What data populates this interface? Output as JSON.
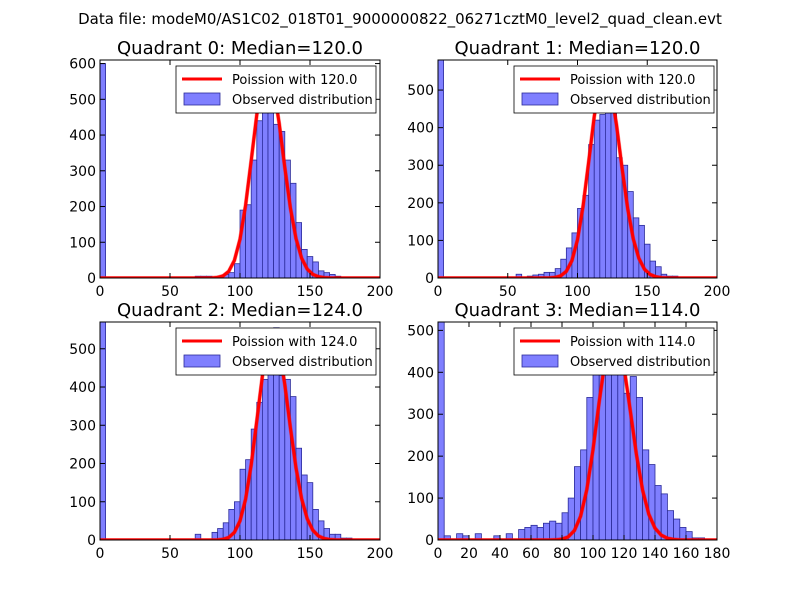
{
  "figure": {
    "suptitle": "Data file: modeM0/AS1C02_018T01_9000000822_06271cztM0_level2_quad_clean.evt"
  },
  "colors": {
    "bar_fill": "#7f7fff",
    "bar_edge": "#2b2b99",
    "poisson_line": "#ff0000",
    "text": "#000000"
  },
  "chart_data": [
    {
      "type": "bar",
      "title": "Quadrant 0: Median=120.0",
      "xlim": [
        0,
        200
      ],
      "ylim": [
        0,
        610
      ],
      "xticks": [
        0,
        50,
        100,
        150,
        200
      ],
      "yticks": [
        0,
        100,
        200,
        300,
        400,
        500,
        600
      ],
      "bin_width": 4,
      "bins": [
        [
          0,
          600
        ],
        [
          68,
          5
        ],
        [
          72,
          5
        ],
        [
          76,
          5
        ],
        [
          80,
          2
        ],
        [
          84,
          5
        ],
        [
          88,
          10
        ],
        [
          92,
          15
        ],
        [
          96,
          40
        ],
        [
          100,
          190
        ],
        [
          104,
          205
        ],
        [
          108,
          330
        ],
        [
          112,
          440
        ],
        [
          116,
          470
        ],
        [
          120,
          560
        ],
        [
          124,
          430
        ],
        [
          128,
          410
        ],
        [
          132,
          330
        ],
        [
          136,
          265
        ],
        [
          140,
          155
        ],
        [
          144,
          80
        ],
        [
          148,
          60
        ],
        [
          152,
          45
        ],
        [
          156,
          20
        ],
        [
          160,
          15
        ],
        [
          164,
          10
        ],
        [
          168,
          5
        ]
      ],
      "poisson_mean": 120.0,
      "poisson_peak": 580,
      "legend": [
        "Poission with 120.0",
        "Observed distribution"
      ]
    },
    {
      "type": "bar",
      "title": "Quadrant 1: Median=120.0",
      "xlim": [
        0,
        200
      ],
      "ylim": [
        0,
        580
      ],
      "xticks": [
        0,
        50,
        100,
        150,
        200
      ],
      "yticks": [
        0,
        100,
        200,
        300,
        400,
        500
      ],
      "bin_width": 4,
      "bins": [
        [
          0,
          580
        ],
        [
          56,
          10
        ],
        [
          64,
          5
        ],
        [
          68,
          8
        ],
        [
          72,
          10
        ],
        [
          76,
          15
        ],
        [
          80,
          15
        ],
        [
          84,
          25
        ],
        [
          88,
          50
        ],
        [
          92,
          80
        ],
        [
          96,
          120
        ],
        [
          100,
          185
        ],
        [
          104,
          220
        ],
        [
          108,
          355
        ],
        [
          112,
          420
        ],
        [
          116,
          435
        ],
        [
          120,
          530
        ],
        [
          124,
          480
        ],
        [
          128,
          320
        ],
        [
          132,
          300
        ],
        [
          136,
          230
        ],
        [
          140,
          160
        ],
        [
          144,
          140
        ],
        [
          148,
          90
        ],
        [
          152,
          45
        ],
        [
          156,
          30
        ],
        [
          160,
          10
        ],
        [
          164,
          5
        ],
        [
          168,
          5
        ]
      ],
      "poisson_mean": 120.0,
      "poisson_peak": 545,
      "legend": [
        "Poission with 120.0",
        "Observed distribution"
      ]
    },
    {
      "type": "bar",
      "title": "Quadrant 2: Median=124.0",
      "xlim": [
        0,
        200
      ],
      "ylim": [
        0,
        570
      ],
      "xticks": [
        0,
        50,
        100,
        150,
        200
      ],
      "yticks": [
        0,
        100,
        200,
        300,
        400,
        500
      ],
      "bin_width": 4,
      "bins": [
        [
          0,
          570
        ],
        [
          68,
          15
        ],
        [
          80,
          20
        ],
        [
          84,
          30
        ],
        [
          88,
          45
        ],
        [
          92,
          80
        ],
        [
          96,
          100
        ],
        [
          100,
          185
        ],
        [
          104,
          210
        ],
        [
          108,
          290
        ],
        [
          112,
          360
        ],
        [
          116,
          420
        ],
        [
          120,
          470
        ],
        [
          124,
          555
        ],
        [
          128,
          430
        ],
        [
          132,
          420
        ],
        [
          136,
          375
        ],
        [
          140,
          240
        ],
        [
          144,
          170
        ],
        [
          148,
          150
        ],
        [
          152,
          80
        ],
        [
          156,
          50
        ],
        [
          160,
          30
        ],
        [
          164,
          15
        ],
        [
          168,
          15
        ],
        [
          172,
          5
        ],
        [
          176,
          5
        ]
      ],
      "poisson_mean": 124.0,
      "poisson_peak": 540,
      "legend": [
        "Poission with 124.0",
        "Observed distribution"
      ]
    },
    {
      "type": "bar",
      "title": "Quadrant 3: Median=114.0",
      "xlim": [
        0,
        180
      ],
      "ylim": [
        0,
        520
      ],
      "xticks": [
        0,
        20,
        40,
        60,
        80,
        100,
        120,
        140,
        160,
        180
      ],
      "yticks": [
        0,
        100,
        200,
        300,
        400,
        500
      ],
      "bin_width": 4,
      "bins": [
        [
          0,
          520
        ],
        [
          4,
          10
        ],
        [
          12,
          15
        ],
        [
          16,
          10
        ],
        [
          24,
          15
        ],
        [
          36,
          10
        ],
        [
          44,
          15
        ],
        [
          52,
          25
        ],
        [
          56,
          30
        ],
        [
          60,
          35
        ],
        [
          64,
          30
        ],
        [
          68,
          40
        ],
        [
          72,
          45
        ],
        [
          76,
          40
        ],
        [
          80,
          65
        ],
        [
          84,
          100
        ],
        [
          88,
          175
        ],
        [
          92,
          215
        ],
        [
          96,
          340
        ],
        [
          100,
          410
        ],
        [
          104,
          470
        ],
        [
          108,
          415
        ],
        [
          112,
          490
        ],
        [
          116,
          440
        ],
        [
          120,
          350
        ],
        [
          124,
          390
        ],
        [
          128,
          340
        ],
        [
          132,
          215
        ],
        [
          136,
          180
        ],
        [
          140,
          130
        ],
        [
          144,
          110
        ],
        [
          148,
          70
        ],
        [
          152,
          50
        ],
        [
          156,
          30
        ],
        [
          160,
          20
        ],
        [
          164,
          5
        ],
        [
          168,
          5
        ]
      ],
      "poisson_mean": 114.0,
      "poisson_peak": 495,
      "legend": [
        "Poission with 114.0",
        "Observed distribution"
      ]
    }
  ]
}
